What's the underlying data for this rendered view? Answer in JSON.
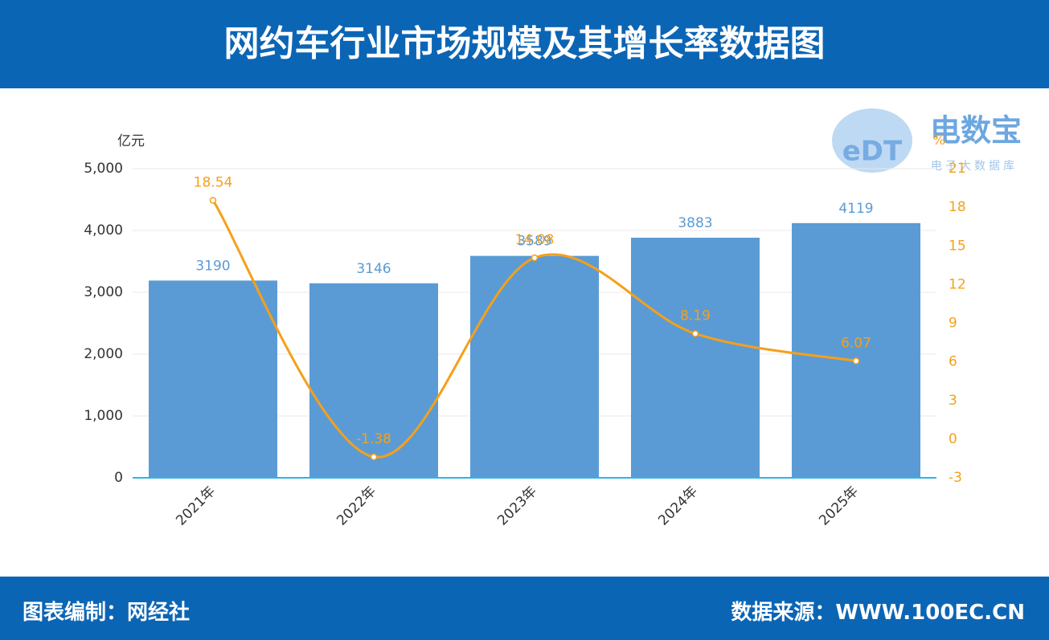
{
  "header": {
    "title": "网约车行业市场规模及其增长率数据图"
  },
  "logo": {
    "mark": "eDT",
    "name": "电数宝",
    "subtitle": "电子大数据库"
  },
  "chart_data": {
    "type": "bar_line",
    "y_unit": "亿元",
    "y2_unit": "%",
    "categories": [
      "2021年",
      "2022年",
      "2023年",
      "2024年",
      "2025年"
    ],
    "series": [
      {
        "type": "bar",
        "color": "#5b9bd5",
        "values": [
          3190,
          3146,
          3589,
          3883,
          4119
        ]
      },
      {
        "type": "line",
        "color": "#f5a01a",
        "axis": "y2",
        "values": [
          18.54,
          -1.38,
          14.08,
          8.19,
          6.07
        ]
      }
    ],
    "ylim": [
      0,
      5000
    ],
    "yticks": [
      0,
      {
        "value": 1000,
        "label": "1,000"
      },
      {
        "value": 2000,
        "label": "2,000"
      },
      {
        "value": 3000,
        "label": "3,000"
      },
      {
        "value": 4000,
        "label": "4,000"
      },
      {
        "value": 5000,
        "label": "5,000"
      }
    ],
    "y2lim": [
      -3,
      21
    ],
    "y2ticks": [
      -3,
      0,
      3,
      6,
      9,
      12,
      15,
      18,
      21
    ],
    "grid": true
  },
  "footer": {
    "left": "图表编制：网经社",
    "right": "数据来源：WWW.100EC.CN"
  }
}
